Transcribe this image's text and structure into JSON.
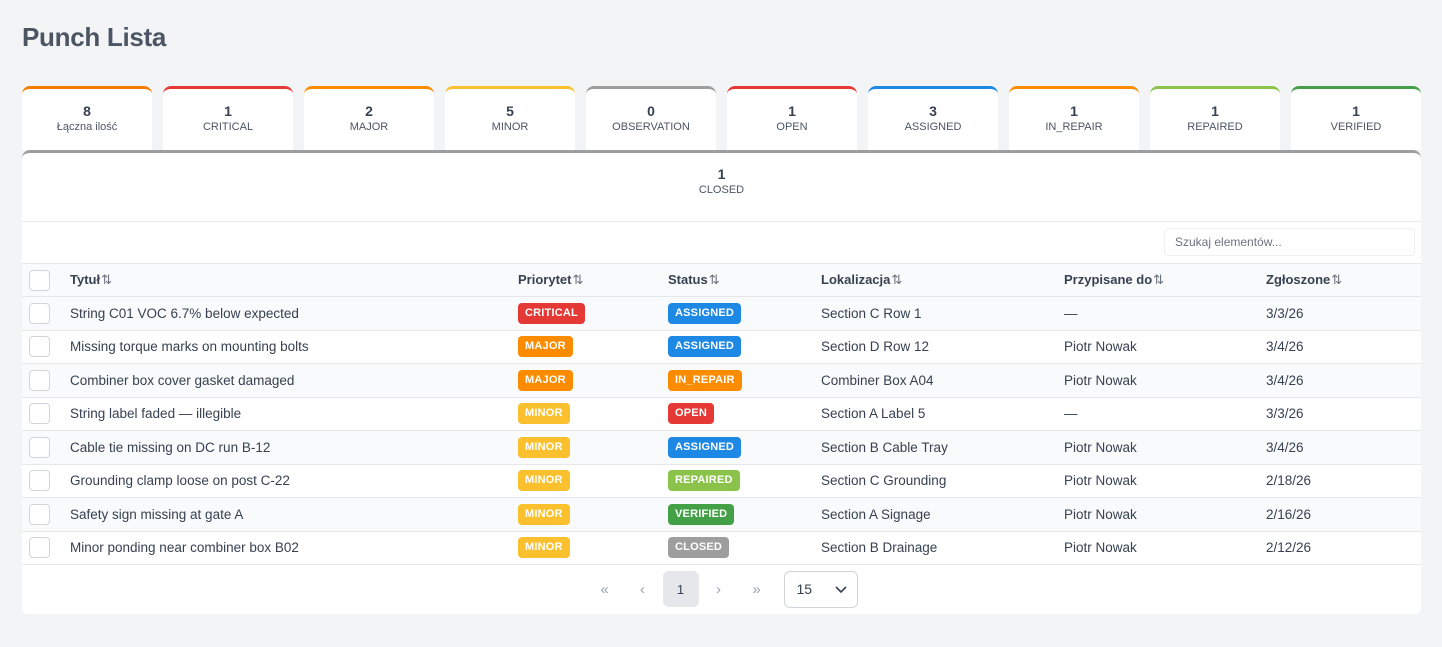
{
  "page": {
    "title": "Punch Lista"
  },
  "stats": [
    {
      "value": "8",
      "label": "Łączna ilość",
      "color": "#f57c00"
    },
    {
      "value": "1",
      "label": "CRITICAL",
      "color": "#e53935"
    },
    {
      "value": "2",
      "label": "MAJOR",
      "color": "#fb8c00"
    },
    {
      "value": "5",
      "label": "MINOR",
      "color": "#fbc02d"
    },
    {
      "value": "0",
      "label": "OBSERVATION",
      "color": "#9e9e9e"
    },
    {
      "value": "1",
      "label": "OPEN",
      "color": "#e53935"
    },
    {
      "value": "3",
      "label": "ASSIGNED",
      "color": "#1e88e5"
    },
    {
      "value": "1",
      "label": "IN_REPAIR",
      "color": "#fb8c00"
    },
    {
      "value": "1",
      "label": "REPAIRED",
      "color": "#8bc34a"
    },
    {
      "value": "1",
      "label": "VERIFIED",
      "color": "#43a047"
    }
  ],
  "closed_stat": {
    "value": "1",
    "label": "CLOSED",
    "color": "#9e9e9e"
  },
  "search": {
    "placeholder": "Szukaj elementów..."
  },
  "table": {
    "headers": {
      "title": "Tytuł",
      "priority": "Priorytet",
      "status": "Status",
      "location": "Lokalizacja",
      "assigned": "Przypisane do",
      "reported": "Zgłoszone"
    },
    "rows": [
      {
        "title": "String C01 VOC 6.7% below expected",
        "priority": "CRITICAL",
        "status": "ASSIGNED",
        "location": "Section C Row 1",
        "assigned": "—",
        "reported": "3/3/26"
      },
      {
        "title": "Missing torque marks on mounting bolts",
        "priority": "MAJOR",
        "status": "ASSIGNED",
        "location": "Section D Row 12",
        "assigned": "Piotr Nowak",
        "reported": "3/4/26"
      },
      {
        "title": "Combiner box cover gasket damaged",
        "priority": "MAJOR",
        "status": "IN_REPAIR",
        "location": "Combiner Box A04",
        "assigned": "Piotr Nowak",
        "reported": "3/4/26"
      },
      {
        "title": "String label faded — illegible",
        "priority": "MINOR",
        "status": "OPEN",
        "location": "Section A Label 5",
        "assigned": "—",
        "reported": "3/3/26"
      },
      {
        "title": "Cable tie missing on DC run B-12",
        "priority": "MINOR",
        "status": "ASSIGNED",
        "location": "Section B Cable Tray",
        "assigned": "Piotr Nowak",
        "reported": "3/4/26"
      },
      {
        "title": "Grounding clamp loose on post C-22",
        "priority": "MINOR",
        "status": "REPAIRED",
        "location": "Section C Grounding",
        "assigned": "Piotr Nowak",
        "reported": "2/18/26"
      },
      {
        "title": "Safety sign missing at gate A",
        "priority": "MINOR",
        "status": "VERIFIED",
        "location": "Section A Signage",
        "assigned": "Piotr Nowak",
        "reported": "2/16/26"
      },
      {
        "title": "Minor ponding near combiner box B02",
        "priority": "MINOR",
        "status": "CLOSED",
        "location": "Section B Drainage",
        "assigned": "Piotr Nowak",
        "reported": "2/12/26"
      }
    ]
  },
  "badge_colors": {
    "CRITICAL": "#e53935",
    "MAJOR": "#fb8c00",
    "MINOR": "#fbc02d",
    "ASSIGNED": "#1e88e5",
    "IN_REPAIR": "#fb8c00",
    "OPEN": "#e53935",
    "REPAIRED": "#8bc34a",
    "VERIFIED": "#43a047",
    "CLOSED": "#9e9e9e"
  },
  "pagination": {
    "current_page": "1",
    "page_size": "15",
    "first_icon": "«",
    "prev_icon": "‹",
    "next_icon": "›",
    "last_icon": "»"
  }
}
